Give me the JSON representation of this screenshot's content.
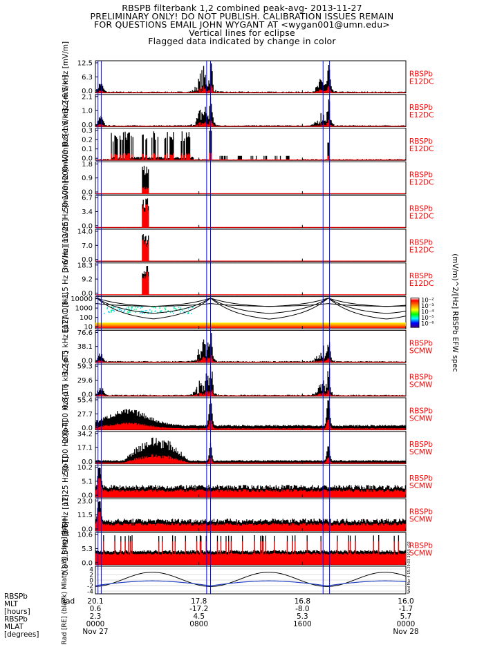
{
  "title_lines": [
    "RBSPB filterbank 1,2 combined peak-avg- 2013-11-27",
    "PRELIMINARY ONLY! DO NOT PUBLISH. CALIBRATION ISSUES REMAIN",
    "FOR QUESTIONS EMAIL JOHN WYGANT AT <wygan001@umn.edu>",
    "Vertical lines for eclipse",
    "Flagged data indicated by change in color"
  ],
  "colors": {
    "data": "#000000",
    "flag": "#ff0000",
    "eclipse": "#0000ff",
    "label": "#ff0000",
    "mlat": "#000000",
    "rad": "#2040c0"
  },
  "chart_data": {
    "type": "line",
    "x_ticks": [
      "0000\nNov 27",
      "0800",
      "1600",
      "0000\nNov 28"
    ],
    "eclipse_times_hours": [
      0.2,
      0.45,
      8.6,
      8.9,
      17.6,
      18.1
    ],
    "panels": [
      {
        "ylabel": "3.2-6.5 kHz [mV/m]",
        "ticks": [
          "12.5",
          "6.3",
          "0.0"
        ],
        "ymax": 12.5,
        "src": [
          "RBSPb",
          "E12DC"
        ],
        "profile": "perigee_spikes",
        "peak": 0.9
      },
      {
        "ylabel": "0.8-1.6 kHz [mV/m]",
        "ticks": [
          "2.1",
          "1.0",
          "0.0"
        ],
        "ymax": 2.1,
        "src": [
          "RBSPb",
          "E12DC"
        ],
        "profile": "perigee_spikes",
        "peak": 1.0
      },
      {
        "ylabel": "200-400 Hz [mV/m]",
        "ticks": [
          "0.3",
          "0.2",
          "0.1",
          "0.0"
        ],
        "ymax": 0.3,
        "src": [
          "RBSPb",
          "E12DC"
        ],
        "profile": "early_blocks",
        "peak": 0.6
      },
      {
        "ylabel": "50-100 Hz [mV/m]",
        "ticks": [
          "1.8",
          "0.9",
          "0.0"
        ],
        "ymax": 1.8,
        "src": [
          "RBSPb",
          "E12DC"
        ],
        "profile": "single_burst",
        "peak": 0.95
      },
      {
        "ylabel": "12-25 Hz [mV/m]",
        "ticks": [
          "6.7",
          "3.4",
          "0.0"
        ],
        "ymax": 6.7,
        "src": [
          "RBSPb",
          "E12DC"
        ],
        "profile": "single_burst_red",
        "peak": 0.95
      },
      {
        "ylabel": "3-6 Hz [mV/m]",
        "ticks": [
          "14.0",
          "7.0",
          "0.0"
        ],
        "ymax": 14.0,
        "src": [
          "RBSPb",
          "E12DC"
        ],
        "profile": "single_burst_red",
        "peak": 0.95
      },
      {
        "ylabel": "0.8-1.5 Hz [mV/m]",
        "ticks": [
          "18.3",
          "9.2",
          "0.0"
        ],
        "ymax": 18.3,
        "src": [
          "RBSPb",
          "E12DC"
        ],
        "profile": "single_burst_red",
        "peak": 0.95
      },
      {
        "ylabel": "E12AC [Hz]",
        "ticks": [
          "10000",
          "1000",
          "100",
          "10"
        ],
        "ymax": 10000,
        "src": [],
        "profile": "spectrogram",
        "peak": 1.0
      },
      {
        "ylabel": "3.2-6.5 kHz [pT]",
        "ticks": [
          "76.6",
          "38.1",
          "0.0"
        ],
        "ymax": 76.6,
        "src": [
          "RBSPb",
          "SCMW"
        ],
        "profile": "perigee_spikes",
        "peak": 0.9
      },
      {
        "ylabel": "0.8-1.6 kHz [pT]",
        "ticks": [
          "59.3",
          "29.6",
          "0.0"
        ],
        "ymax": 59.3,
        "src": [
          "RBSPb",
          "SCMW"
        ],
        "profile": "perigee_spikes",
        "peak": 0.95
      },
      {
        "ylabel": "200-400 Hz [pT]",
        "ticks": [
          "55.4",
          "27.7",
          "0.0"
        ],
        "ymax": 55.4,
        "src": [
          "RBSPb",
          "SCMW"
        ],
        "profile": "hump_early",
        "peak": 0.95
      },
      {
        "ylabel": "50-100 Hz [pT]",
        "ticks": [
          "34.2",
          "17.1",
          "0.0"
        ],
        "ymax": 34.2,
        "src": [
          "RBSPb",
          "SCMW"
        ],
        "profile": "hump_mid",
        "peak": 0.6
      },
      {
        "ylabel": "12-25 Hz [pT]",
        "ticks": [
          "10.2",
          "5.1",
          "0.0"
        ],
        "ymax": 10.2,
        "src": [
          "RBSPb",
          "SCMW"
        ],
        "profile": "noise_floor",
        "peak": 0.35
      },
      {
        "ylabel": "3-6 Hz [pT]",
        "ticks": [
          "23.0",
          "11.5",
          "0.0"
        ],
        "ymax": 23.0,
        "src": [
          "RBSPb",
          "SCMW"
        ],
        "profile": "noise_floor",
        "peak": 0.3
      },
      {
        "ylabel": "0.8-1.5 Hz [pT]",
        "ticks": [
          "10.6",
          "5.3",
          "0.0"
        ],
        "ymax": 10.6,
        "src": [
          "RBSPb",
          "SCMW"
        ],
        "profile": "red_floor",
        "peak": 0.55
      }
    ],
    "last_panel": {
      "ylabel": "Rad [RE] (black) Mlat*(1/6) [deg] (blue)",
      "ticks": [
        "4",
        "2",
        "0",
        "-2",
        "-4"
      ],
      "ymin": -5,
      "ymax": 5,
      "side_text": "Wed Mar 4 15:29:03 2015 v02"
    },
    "colorbar": {
      "label": "(mV/m)^2/[Hz] RBSPb EFW spec",
      "ticks": [
        "10⁻²",
        "10⁻³",
        "10⁻⁴",
        "10⁻⁵",
        "10⁻⁶"
      ]
    },
    "ephemeris": {
      "row_labels": [
        "RBSPb MLT [hours]",
        "RBSPb MLAT [degrees]"
      ],
      "rad": [
        "20.1",
        "17.8",
        "16.8",
        "16.0"
      ],
      "mlt": [
        "0.6",
        "-17.2",
        "-8.0",
        "-1.7"
      ],
      "mlat": [
        "2.3",
        "4.5",
        "5.3",
        "5.7"
      ]
    }
  }
}
